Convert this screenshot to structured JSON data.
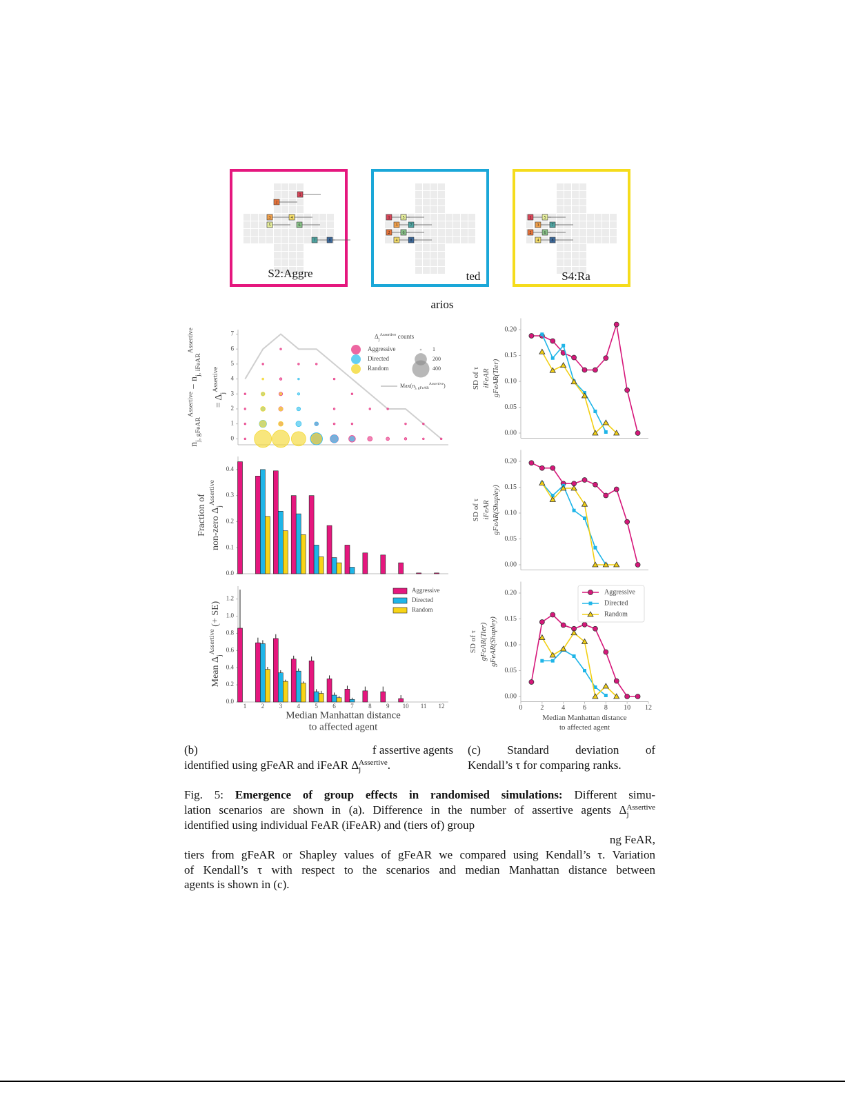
{
  "scenarios": [
    {
      "label": "S2:Aggre",
      "agents": [
        "1",
        "2",
        "3",
        "4",
        "5",
        "6",
        "7",
        "8"
      ]
    },
    {
      "label": "ted",
      "agents": [
        "1",
        "5",
        "3",
        "7",
        "2",
        "6",
        "4",
        "8"
      ]
    },
    {
      "label": "S4:Ra",
      "agents": [
        "1",
        "5",
        "3",
        "7",
        "2",
        "6",
        "4",
        "8"
      ]
    }
  ],
  "scenarios_caption": "arios",
  "chart_data": [
    {
      "type": "bubble",
      "ylabel": [
        [
          "n",
          {
            "sub": "j, gFeAR"
          },
          {
            "sup": "Assertive"
          },
          " − n",
          {
            "sub": "j, iFeAR"
          },
          {
            "sup": "Assertive"
          }
        ],
        [
          "= Δ",
          {
            "sub": "j"
          },
          {
            "sup": "Assertive"
          }
        ]
      ],
      "xlim": [
        0.6,
        12.4
      ],
      "ylim": [
        -0.4,
        7.3
      ],
      "yticks": [
        0,
        1,
        2,
        3,
        4,
        5,
        6,
        7
      ],
      "legend_title": [
        "Δ",
        {
          "sub": "j"
        },
        {
          "sup": "Assertive"
        },
        " counts"
      ],
      "size_legend": [
        1,
        200,
        400
      ],
      "series": [
        {
          "name": "Aggressive",
          "color": "#e8408a",
          "x": [
            1,
            5,
            6,
            7,
            8,
            9,
            10,
            3,
            3,
            3,
            3,
            5,
            6,
            7,
            6,
            11,
            1,
            1,
            1,
            2,
            3,
            4,
            5,
            6,
            7,
            8,
            9,
            10,
            11,
            12
          ],
          "values": [
            0,
            0,
            0,
            0,
            0,
            0,
            0,
            1,
            2,
            3,
            4,
            1,
            1,
            1,
            2,
            0,
            1,
            2,
            3,
            5,
            6,
            5,
            5,
            4,
            3,
            2,
            2,
            1,
            1,
            0
          ],
          "sizes": [
            3,
            180,
            90,
            60,
            30,
            15,
            8,
            25,
            25,
            18,
            8,
            20,
            5,
            3,
            4,
            2,
            1,
            1,
            1,
            1,
            1,
            1,
            1,
            1,
            1,
            1,
            1,
            1,
            1,
            1
          ]
        },
        {
          "name": "Directed",
          "color": "#3ec3ee",
          "x": [
            5,
            6,
            7,
            2,
            4,
            5,
            2,
            4,
            2,
            4,
            4
          ],
          "values": [
            0,
            0,
            0,
            1,
            1,
            1,
            2,
            2,
            3,
            3,
            4
          ],
          "sizes": [
            200,
            80,
            30,
            70,
            40,
            20,
            25,
            20,
            15,
            8,
            3
          ]
        },
        {
          "name": "Random",
          "color": "#f4d935",
          "x": [
            2,
            3,
            4,
            5,
            2,
            3,
            2,
            3,
            2,
            3,
            2
          ],
          "values": [
            0,
            0,
            0,
            0,
            1,
            1,
            2,
            2,
            3,
            3,
            4
          ],
          "sizes": [
            400,
            400,
            280,
            150,
            60,
            30,
            30,
            20,
            20,
            8,
            5
          ]
        }
      ],
      "line": {
        "name": [
          "Max(n",
          {
            "sub": "j, gFeAR"
          },
          {
            "sup": "Assertive"
          },
          ")"
        ],
        "color": "#cfcfcf",
        "x": [
          1,
          2,
          3,
          4,
          5,
          6,
          7,
          8,
          9,
          10,
          11,
          12
        ],
        "values": [
          4,
          6,
          7,
          6,
          6,
          5,
          4,
          3,
          2,
          2,
          1,
          0
        ]
      }
    },
    {
      "type": "bar",
      "ylabel": [
        [
          "Fraction of"
        ],
        [
          "non-zero Δ",
          {
            "sub": "j"
          },
          {
            "sup": "Assertive"
          }
        ]
      ],
      "ylim": [
        0,
        0.45
      ],
      "yticks": [
        {
          "value": 0,
          "label": "0.0"
        },
        0.1,
        0.2,
        0.3,
        0.4
      ],
      "series": [
        {
          "name": "Aggressive",
          "color": "#e5177e",
          "values": [
            0.43,
            0.375,
            0.395,
            0.3,
            0.3,
            0.185,
            0.11,
            0.08,
            0.072,
            0.042,
            0.003,
            0.003
          ]
        },
        {
          "name": "Directed",
          "color": "#1fb5e8",
          "values": [
            0,
            0.4,
            0.24,
            0.23,
            0.11,
            0.062,
            0.025,
            0,
            0,
            0,
            0,
            0
          ]
        },
        {
          "name": "Random",
          "color": "#f7d417",
          "values": [
            0,
            0.22,
            0.165,
            0.15,
            0.065,
            0.042,
            0,
            0,
            0,
            0,
            0,
            0
          ]
        }
      ]
    },
    {
      "type": "bar",
      "ylabel": [
        [
          "Mean Δ",
          {
            "sub": "j"
          },
          {
            "sup": "Assertive"
          },
          " (+ SE)"
        ]
      ],
      "xlabel": [
        "Median Manhattan distance",
        "to affected agent"
      ],
      "categories": [
        "1",
        "2",
        "3",
        "4",
        "5",
        "6",
        "7",
        "8",
        "9",
        "10",
        "11",
        "12"
      ],
      "ylim": [
        0,
        1.35
      ],
      "yticks": [
        {
          "value": 0,
          "label": "0.0"
        },
        0.2,
        0.4,
        0.6,
        0.8,
        {
          "value": 1,
          "label": "1.0"
        },
        1.2
      ],
      "legend": "upper right",
      "series": [
        {
          "name": "Aggressive",
          "color": "#e5177e",
          "values": [
            0.86,
            0.69,
            0.74,
            0.5,
            0.48,
            0.27,
            0.15,
            0.13,
            0.12,
            0.04,
            0,
            0
          ],
          "errors": [
            0.45,
            0.06,
            0.05,
            0.04,
            0.05,
            0.04,
            0.04,
            0.05,
            0.06,
            0.04,
            0,
            0
          ]
        },
        {
          "name": "Directed",
          "color": "#1fb5e8",
          "values": [
            0,
            0.68,
            0.34,
            0.36,
            0.12,
            0.08,
            0.03,
            0,
            0,
            0,
            0,
            0
          ],
          "errors": [
            0,
            0.04,
            0.03,
            0.03,
            0.03,
            0.03,
            0.02,
            0,
            0,
            0,
            0,
            0
          ]
        },
        {
          "name": "Random",
          "color": "#f7d417",
          "values": [
            0,
            0.38,
            0.24,
            0.22,
            0.1,
            0.05,
            0,
            0,
            0,
            0,
            0,
            0
          ],
          "errors": [
            0,
            0.03,
            0.02,
            0.02,
            0.03,
            0.02,
            0,
            0,
            0,
            0,
            0,
            0
          ]
        }
      ]
    },
    {
      "type": "line",
      "ylabel": [
        [
          "SD of τ"
        ],
        [
          "iFeAR"
        ],
        [
          "gFeAR(Tier)"
        ]
      ],
      "x": [
        1,
        2,
        3,
        4,
        5,
        6,
        7,
        8,
        9,
        10,
        11
      ],
      "xlim": [
        0,
        12
      ],
      "ylim": [
        -0.01,
        0.222
      ],
      "yticks": [
        {
          "value": 0,
          "label": "0.00"
        },
        {
          "value": 0.05,
          "label": "0.05"
        },
        {
          "value": 0.1,
          "label": "0.10"
        },
        {
          "value": 0.15,
          "label": "0.15"
        },
        {
          "value": 0.2,
          "label": "0.20"
        }
      ],
      "series": [
        {
          "name": "Aggressive",
          "color": "#d6177a",
          "marker": "circle",
          "values": [
            0.188,
            0.188,
            0.178,
            0.155,
            0.146,
            0.122,
            0.122,
            0.145,
            0.21,
            0.083,
            0
          ]
        },
        {
          "name": "Directed",
          "color": "#1fb5e8",
          "marker": "square",
          "values": [
            null,
            0.191,
            0.145,
            0.169,
            0.1,
            0.078,
            0.042,
            0.002,
            null,
            null,
            null
          ]
        },
        {
          "name": "Random",
          "color": "#f2cf14",
          "marker": "triangle",
          "values": [
            null,
            0.157,
            0.121,
            0.131,
            0.099,
            0.072,
            0,
            0.02,
            0,
            null,
            null
          ]
        }
      ]
    },
    {
      "type": "line",
      "ylabel": [
        [
          "SD of τ"
        ],
        [
          "iFeAR"
        ],
        [
          "gFeAR(Shapley)"
        ]
      ],
      "x": [
        1,
        2,
        3,
        4,
        5,
        6,
        7,
        8,
        9,
        10,
        11
      ],
      "xlim": [
        0,
        12
      ],
      "ylim": [
        -0.01,
        0.222
      ],
      "yticks": [
        {
          "value": 0,
          "label": "0.00"
        },
        {
          "value": 0.05,
          "label": "0.05"
        },
        {
          "value": 0.1,
          "label": "0.10"
        },
        {
          "value": 0.15,
          "label": "0.15"
        },
        {
          "value": 0.2,
          "label": "0.20"
        }
      ],
      "series": [
        {
          "name": "Aggressive",
          "color": "#d6177a",
          "marker": "circle",
          "values": [
            0.197,
            0.187,
            0.187,
            0.157,
            0.157,
            0.164,
            0.155,
            0.134,
            0.146,
            0.083,
            0
          ]
        },
        {
          "name": "Directed",
          "color": "#1fb5e8",
          "marker": "square",
          "values": [
            null,
            0.158,
            0.134,
            0.153,
            0.105,
            0.09,
            0.033,
            0,
            null,
            null,
            null
          ]
        },
        {
          "name": "Random",
          "color": "#f2cf14",
          "marker": "triangle",
          "values": [
            null,
            0.158,
            0.126,
            0.148,
            0.148,
            0.117,
            0,
            0,
            0,
            null,
            null
          ]
        }
      ]
    },
    {
      "type": "line",
      "ylabel": [
        [
          "SD of τ"
        ],
        [
          "gFeAR(Tier)"
        ],
        [
          "gFeAR(Shapley)"
        ]
      ],
      "xlabel": [
        "Median Manhattan distance",
        "to affected agent"
      ],
      "x": [
        1,
        2,
        3,
        4,
        5,
        6,
        7,
        8,
        9,
        10,
        11
      ],
      "xlim": [
        0,
        12
      ],
      "xticks": [
        0,
        2,
        4,
        6,
        8,
        10,
        12
      ],
      "ylim": [
        -0.01,
        0.222
      ],
      "yticks": [
        {
          "value": 0,
          "label": "0.00"
        },
        {
          "value": 0.05,
          "label": "0.05"
        },
        {
          "value": 0.1,
          "label": "0.10"
        },
        {
          "value": 0.15,
          "label": "0.15"
        },
        {
          "value": 0.2,
          "label": "0.20"
        }
      ],
      "legend": "upper right",
      "series": [
        {
          "name": "Aggressive",
          "color": "#d6177a",
          "marker": "circle",
          "values": [
            0.028,
            0.144,
            0.158,
            0.138,
            0.131,
            0.139,
            0.131,
            0.086,
            0.03,
            0,
            0
          ]
        },
        {
          "name": "Directed",
          "color": "#1fb5e8",
          "marker": "square",
          "values": [
            null,
            0.069,
            0.069,
            0.09,
            0.078,
            0.05,
            0.018,
            0.002,
            null,
            null,
            null
          ]
        },
        {
          "name": "Random",
          "color": "#f2cf14",
          "marker": "triangle",
          "values": [
            null,
            0.114,
            0.08,
            0.092,
            0.123,
            0.106,
            0,
            0.02,
            0,
            null,
            null
          ]
        }
      ]
    }
  ],
  "caption_b": {
    "label": "(b)",
    "lines": [
      [
        "f assertive agents"
      ],
      [
        "identified using gFeAR and iFeAR Δ",
        {
          "sub": "j"
        },
        {
          "sup": "Assertive"
        },
        "."
      ]
    ]
  },
  "caption_c": {
    "label": "(c)",
    "lines": [
      [
        "Standard deviation of"
      ],
      [
        "Kendall’s τ for comparing ranks."
      ]
    ]
  },
  "figure_caption": [
    [
      "Fig. 5: ",
      {
        "b": "Emergence of group effects in randomised simulations:"
      },
      " Different simu-"
    ],
    [
      "lation scenarios are shown in (a). Difference in the number of assertive agents Δ",
      {
        "sub": "j"
      },
      {
        "sup": "Assertive"
      }
    ],
    [
      "identified using individual FeAR (iFeAR) and (tiers of) group"
    ],
    [
      "ng FeAR,"
    ],
    [
      "tiers from gFeAR or Shapley values of gFeAR we compared using Kendall’s τ. Variation"
    ],
    [
      "of Kendall’s τ with respect to the scenarios and median Manhattan distance between"
    ],
    [
      "agents is shown in (c)."
    ]
  ]
}
